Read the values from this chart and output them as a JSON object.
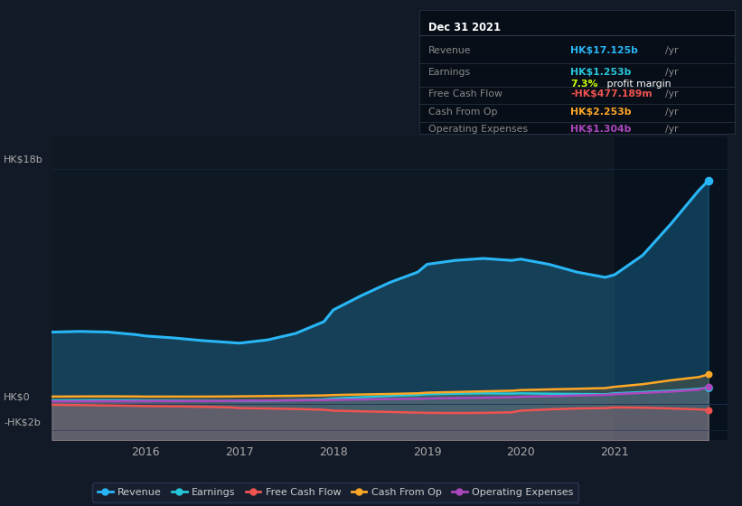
{
  "bg_color": "#131a27",
  "plot_bg_color": "#0f1923",
  "grid_color": "#1e3050",
  "years": [
    2015.0,
    2015.3,
    2015.6,
    2015.9,
    2016.0,
    2016.3,
    2016.6,
    2016.9,
    2017.0,
    2017.3,
    2017.6,
    2017.9,
    2018.0,
    2018.3,
    2018.6,
    2018.9,
    2019.0,
    2019.3,
    2019.6,
    2019.9,
    2020.0,
    2020.3,
    2020.6,
    2020.9,
    2021.0,
    2021.3,
    2021.6,
    2021.9,
    2022.0
  ],
  "revenue": [
    5.5,
    5.55,
    5.5,
    5.3,
    5.2,
    5.05,
    4.85,
    4.7,
    4.65,
    4.9,
    5.4,
    6.3,
    7.2,
    8.3,
    9.3,
    10.1,
    10.7,
    11.0,
    11.15,
    11.0,
    11.1,
    10.7,
    10.1,
    9.7,
    9.9,
    11.4,
    13.8,
    16.4,
    17.125
  ],
  "earnings": [
    0.25,
    0.26,
    0.27,
    0.26,
    0.25,
    0.24,
    0.23,
    0.22,
    0.21,
    0.24,
    0.28,
    0.34,
    0.4,
    0.5,
    0.6,
    0.67,
    0.73,
    0.77,
    0.8,
    0.78,
    0.8,
    0.77,
    0.75,
    0.73,
    0.8,
    0.9,
    1.0,
    1.15,
    1.253
  ],
  "free_cash_flow": [
    -0.08,
    -0.1,
    -0.13,
    -0.16,
    -0.18,
    -0.2,
    -0.23,
    -0.28,
    -0.33,
    -0.36,
    -0.4,
    -0.46,
    -0.53,
    -0.58,
    -0.63,
    -0.68,
    -0.7,
    -0.71,
    -0.7,
    -0.66,
    -0.53,
    -0.43,
    -0.36,
    -0.33,
    -0.28,
    -0.3,
    -0.36,
    -0.43,
    -0.477
  ],
  "cash_from_op": [
    0.55,
    0.56,
    0.57,
    0.56,
    0.55,
    0.55,
    0.55,
    0.56,
    0.57,
    0.59,
    0.61,
    0.64,
    0.67,
    0.71,
    0.75,
    0.8,
    0.85,
    0.9,
    0.95,
    1.0,
    1.05,
    1.1,
    1.15,
    1.2,
    1.3,
    1.5,
    1.8,
    2.05,
    2.253
  ],
  "op_expenses": [
    0.18,
    0.18,
    0.19,
    0.19,
    0.2,
    0.2,
    0.21,
    0.22,
    0.23,
    0.25,
    0.26,
    0.28,
    0.3,
    0.33,
    0.36,
    0.38,
    0.4,
    0.43,
    0.46,
    0.5,
    0.53,
    0.58,
    0.63,
    0.68,
    0.73,
    0.83,
    0.93,
    1.08,
    1.304
  ],
  "revenue_color": "#29b6f6",
  "earnings_color": "#26c6da",
  "fcf_color": "#ef5350",
  "cash_from_op_color": "#ffa726",
  "op_exp_color": "#ab47bc",
  "highlight_x_start": 2021.0,
  "highlight_x_end": 2022.2,
  "x_ticks": [
    2016,
    2017,
    2018,
    2019,
    2020,
    2021
  ],
  "y_label_18b": "HK$18b",
  "y_label_0": "HK$0",
  "y_label_neg2b": "-HK$2b",
  "xlim_start": 2015.0,
  "xlim_end": 2022.2,
  "ylim_min": -2.8,
  "ylim_max": 20.5,
  "info_box": {
    "date": "Dec 31 2021",
    "revenue_label": "Revenue",
    "revenue_value": "HK$17.125b",
    "revenue_suffix": "/yr",
    "revenue_color": "#29b6f6",
    "earnings_label": "Earnings",
    "earnings_value": "HK$1.253b",
    "earnings_suffix": "/yr",
    "earnings_color": "#26c6da",
    "margin_pct": "7.3%",
    "margin_text": " profit margin",
    "margin_pct_color": "#c8ff00",
    "fcf_label": "Free Cash Flow",
    "fcf_value": "-HK$477.189m",
    "fcf_suffix": "/yr",
    "fcf_color": "#ef5350",
    "cashop_label": "Cash From Op",
    "cashop_value": "HK$2.253b",
    "cashop_suffix": "/yr",
    "cashop_color": "#ffa726",
    "opex_label": "Operating Expenses",
    "opex_value": "HK$1.304b",
    "opex_suffix": "/yr",
    "opex_color": "#ab47bc"
  },
  "legend": [
    {
      "label": "Revenue",
      "color": "#29b6f6"
    },
    {
      "label": "Earnings",
      "color": "#26c6da"
    },
    {
      "label": "Free Cash Flow",
      "color": "#ef5350"
    },
    {
      "label": "Cash From Op",
      "color": "#ffa726"
    },
    {
      "label": "Operating Expenses",
      "color": "#ab47bc"
    }
  ]
}
